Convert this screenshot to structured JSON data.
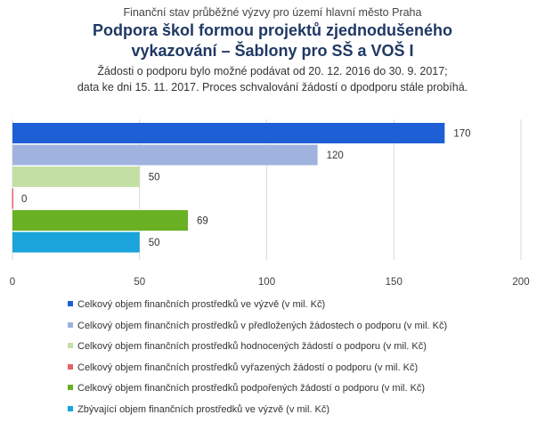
{
  "header": {
    "supertitle": "Finanční stav průběžné výzvy pro území hlavní město Praha",
    "title_line1": "Podpora škol formou projektů zjednodušeného",
    "title_line2": "vykazování – Šablony pro SŠ a VOŠ I",
    "subtitle_line1": "Žádosti o podporu bylo možné podávat od 20. 12. 2016 do 30. 9. 2017;",
    "subtitle_line2": "data ke dni 15. 11. 2017. Proces schvalování žádostí o dpodporu stále probíhá."
  },
  "chart_data": {
    "type": "bar",
    "orientation": "horizontal",
    "xlim": [
      0,
      200
    ],
    "xticks": [
      0,
      50,
      100,
      150,
      200
    ],
    "grid": true,
    "legend_position": "bottom",
    "series": [
      {
        "name": "Celkový objem finančních prostředků ve výzvě (v mil. Kč)",
        "value": 170,
        "color": "#1f5fd6"
      },
      {
        "name": "Celkový objem finančních prostředků v předložených žádostech o podporu (v mil. Kč)",
        "value": 120,
        "color": "#9fb3de"
      },
      {
        "name": "Celkový objem finančních prostředků hodnocených žádostí o podporu (v mil. Kč)",
        "value": 50,
        "color": "#c4dfa4"
      },
      {
        "name": "Celkový objem finančních prostředků vyřazených žádostí o podporu (v mil. Kč)",
        "value": 0,
        "color": "#e06666"
      },
      {
        "name": "Celkový objem finančních prostředků podpořených žádostí o podporu (v mil. Kč)",
        "value": 69,
        "color": "#6ab023"
      },
      {
        "name": "Zbývající objem finančních prostředků ve výzvě (v mil. Kč)",
        "value": 50,
        "color": "#1ba3dc"
      }
    ]
  }
}
